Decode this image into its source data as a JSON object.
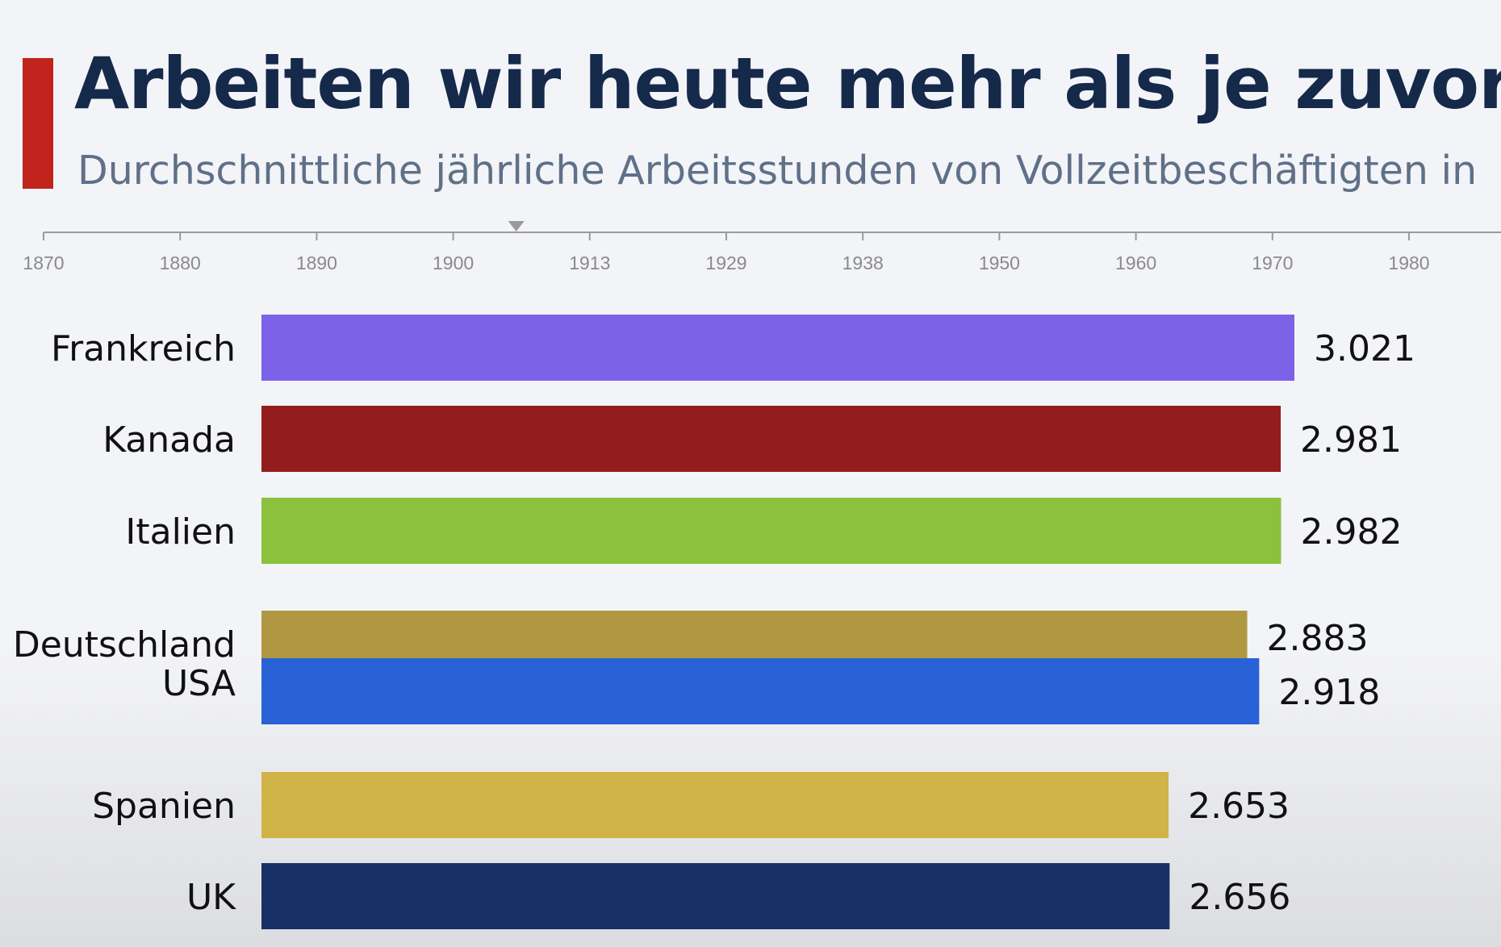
{
  "header": {
    "title": "Arbeiten wir heute mehr als je zuvor?",
    "subtitle": "Durchschnittliche jährliche Arbeitsstunden von Vollzeitbeschäftigten in"
  },
  "colors": {
    "accent": "#c1241c",
    "title": "#15294a",
    "subtitle": "#5f7088",
    "timeline": "#8a8a8a"
  },
  "timeline": {
    "ticks": [
      "1870",
      "1880",
      "1890",
      "1900",
      "1913",
      "1929",
      "1938",
      "1950",
      "1960",
      "1970",
      "1980"
    ],
    "current_year": 1906
  },
  "chart_data": {
    "type": "bar",
    "orientation": "horizontal",
    "title": "Arbeiten wir heute mehr als je zuvor?",
    "subtitle": "Durchschnittliche jährliche Arbeitsstunden von Vollzeitbeschäftigten in",
    "xlim": [
      0,
      3200
    ],
    "categories": [
      "Frankreich",
      "Kanada",
      "Italien",
      "Deutschland",
      "USA",
      "Spanien",
      "UK"
    ],
    "values": [
      3021,
      2981,
      2982,
      2883,
      2918,
      2653,
      2656
    ],
    "value_labels": [
      "3.021",
      "2.981",
      "2.982",
      "2.883",
      "2.918",
      "2.653",
      "2.656"
    ],
    "colors": [
      "#7b62e6",
      "#931c1c",
      "#8bc13c",
      "#b09842",
      "#2962d6",
      "#d1b447",
      "#173066"
    ]
  }
}
